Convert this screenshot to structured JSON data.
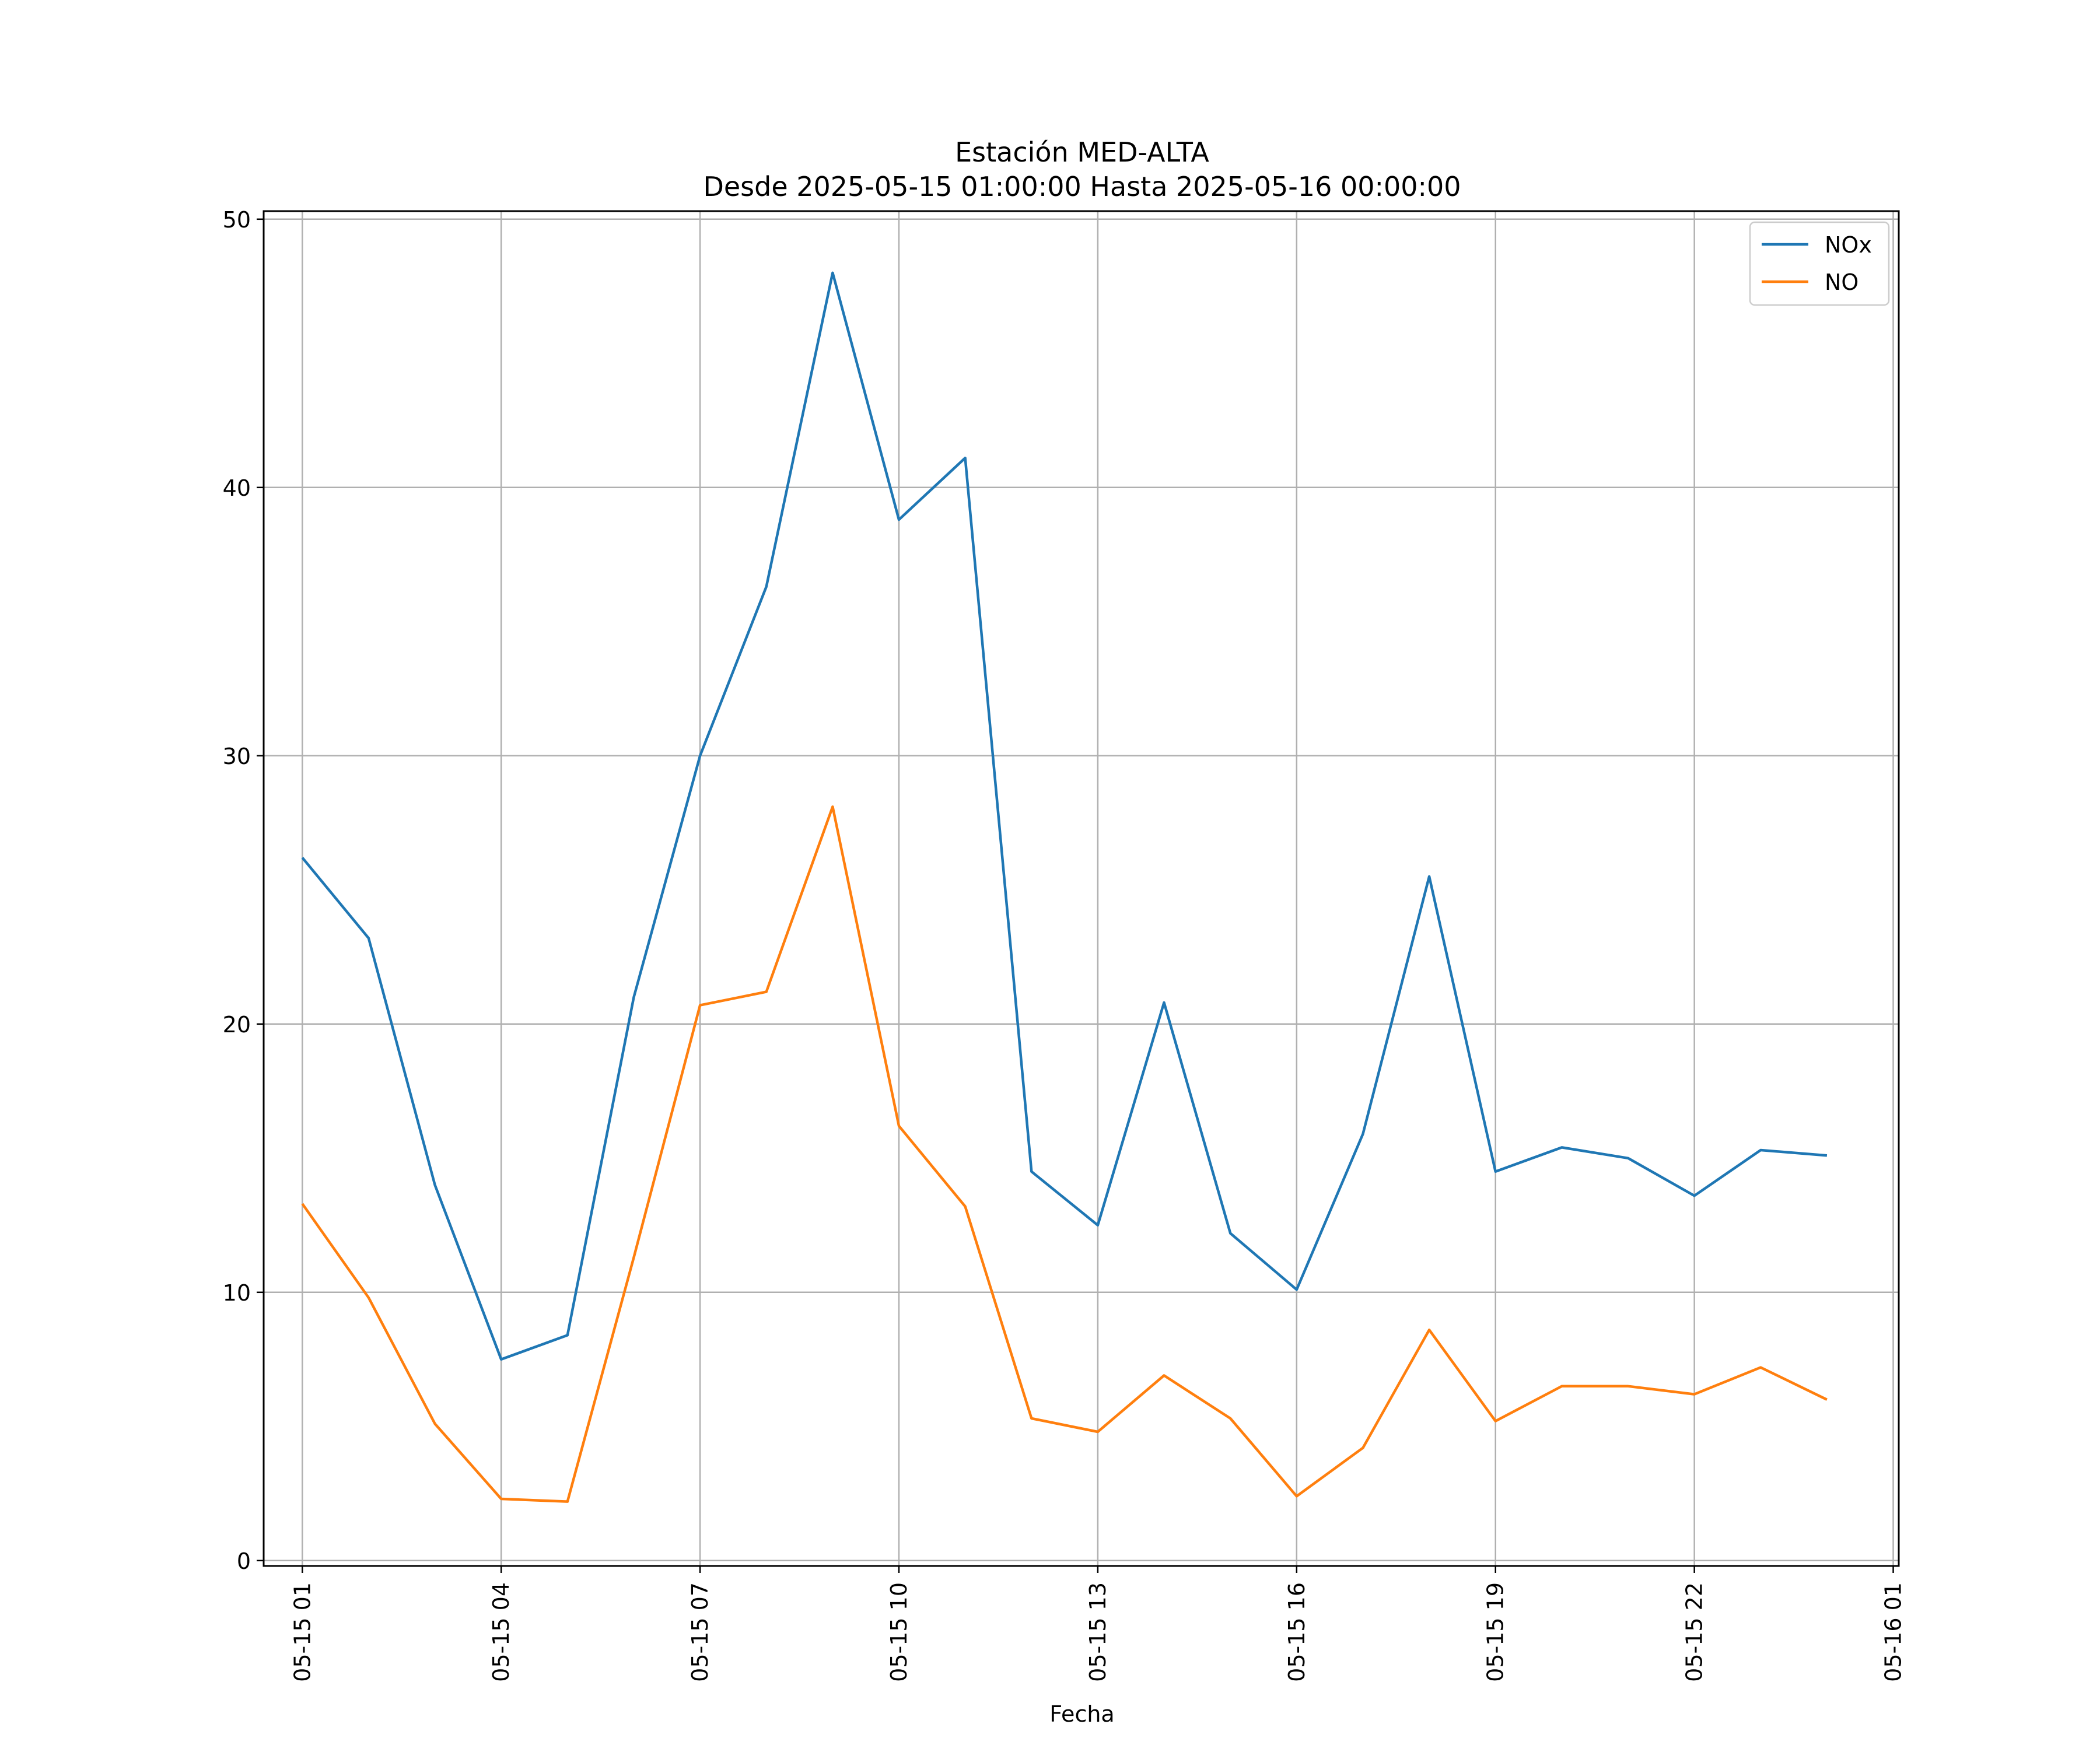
{
  "chart_data": {
    "type": "line",
    "title": "Estación MED-ALTA",
    "subtitle": "Desde 2025-05-15 01:00:00 Hasta 2025-05-16 00:00:00",
    "xlabel": "Fecha",
    "ylabel": "",
    "x_start": "2025-05-15 01:00",
    "x": [
      "05-15 01",
      "05-15 02",
      "05-15 03",
      "05-15 04",
      "05-15 05",
      "05-15 06",
      "05-15 07",
      "05-15 08",
      "05-15 09",
      "05-15 10",
      "05-15 11",
      "05-15 12",
      "05-15 13",
      "05-15 14",
      "05-15 15",
      "05-15 16",
      "05-15 17",
      "05-15 18",
      "05-15 19",
      "05-15 20",
      "05-15 21",
      "05-15 22",
      "05-15 23",
      "05-16 00"
    ],
    "xticks": [
      "05-15 01",
      "05-15 04",
      "05-15 07",
      "05-15 10",
      "05-15 13",
      "05-15 16",
      "05-15 19",
      "05-15 22",
      "05-16 01"
    ],
    "xlim": [
      "05-15 00:25",
      "05-16 01:05"
    ],
    "yticks": [
      0,
      10,
      20,
      30,
      40,
      50
    ],
    "ylim": [
      -0.2,
      50.3
    ],
    "grid": true,
    "legend_position": "top-right",
    "series": [
      {
        "name": "NOx",
        "color": "#1f77b4",
        "values": [
          26.2,
          23.2,
          14.0,
          7.5,
          8.4,
          21.0,
          30.0,
          36.3,
          48.0,
          38.8,
          41.1,
          14.5,
          12.5,
          20.8,
          12.2,
          10.1,
          15.9,
          25.5,
          14.5,
          15.4,
          15.0,
          13.6,
          15.3,
          15.1
        ]
      },
      {
        "name": "NO",
        "color": "#ff7f0e",
        "values": [
          13.3,
          9.8,
          5.1,
          2.3,
          2.2,
          11.3,
          20.7,
          21.2,
          28.1,
          16.2,
          13.2,
          5.3,
          4.8,
          6.9,
          5.3,
          2.4,
          4.2,
          8.6,
          5.2,
          6.5,
          6.5,
          6.2,
          7.2,
          6.0
        ]
      }
    ]
  }
}
